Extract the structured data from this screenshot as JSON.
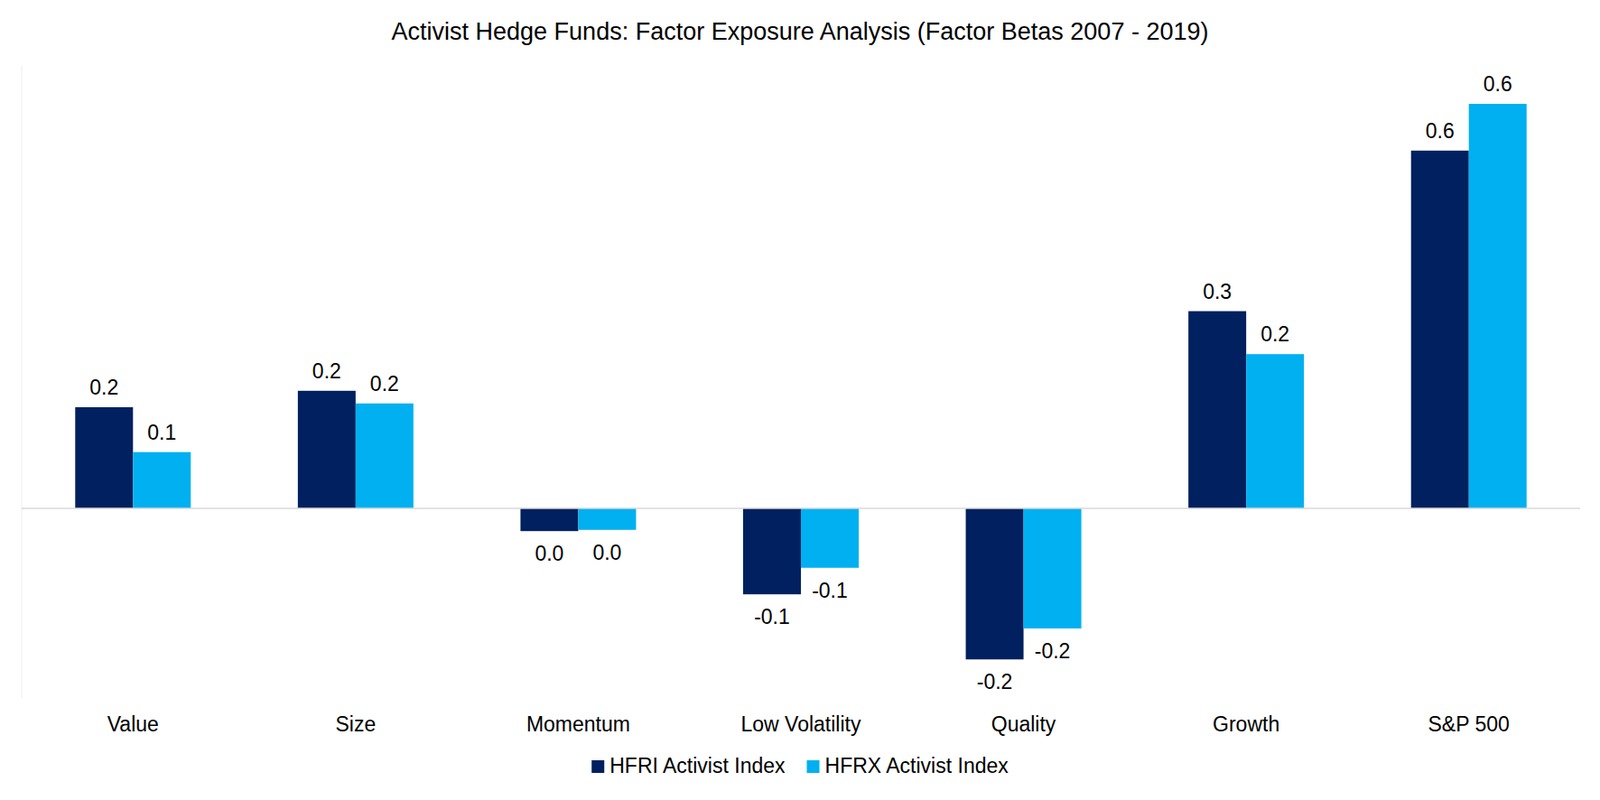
{
  "chart_data": {
    "type": "bar",
    "title": "Activist Hedge Funds: Factor Exposure Analysis (Factor Betas 2007 - 2019)",
    "categories": [
      "Value",
      "Size",
      "Momentum",
      "Low Volatility",
      "Quality",
      "Growth",
      "S&P 500"
    ],
    "series": [
      {
        "name": "HFRI Activist Index",
        "color": "#002060",
        "values": [
          0.16,
          0.186,
          -0.036,
          -0.136,
          -0.239,
          0.312,
          0.566
        ],
        "value_labels": [
          "0.2",
          "0.2",
          "0.0",
          "-0.1",
          "-0.2",
          "0.3",
          "0.6"
        ]
      },
      {
        "name": "HFRX Activist Index",
        "color": "#00B0F0",
        "values": [
          0.089,
          0.166,
          -0.034,
          -0.094,
          -0.19,
          0.244,
          0.64
        ],
        "value_labels": [
          "0.1",
          "0.2",
          "0.0",
          "-0.1",
          "-0.2",
          "0.2",
          "0.6"
        ]
      }
    ],
    "ylim": [
      -0.3,
      0.7
    ],
    "yticks": [
      0
    ],
    "grid": false,
    "data_labels": true,
    "tick_labels": "x",
    "legend": "bottom"
  }
}
